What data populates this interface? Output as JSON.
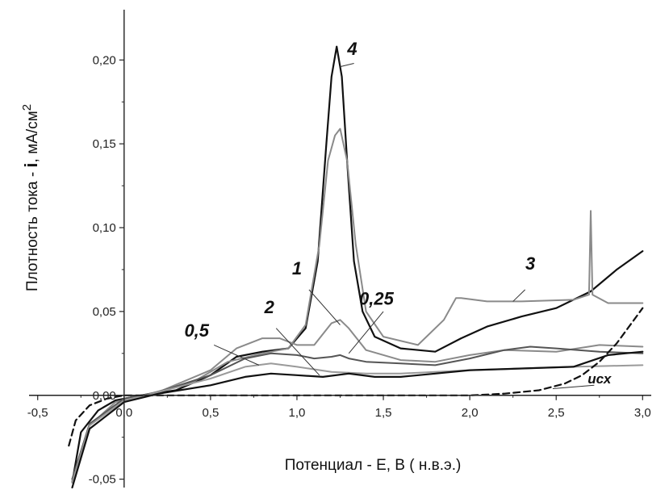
{
  "chart_data": {
    "type": "line",
    "xlabel": "Потенциал - E, B  ( н.в.э.)",
    "ylabel_prefix": "Плотность тока - ",
    "ylabel_bold": "i",
    "ylabel_suffix": ", мА/см",
    "ylabel_sup": "2",
    "xlim": [
      -0.55,
      3.05
    ],
    "ylim": [
      -0.055,
      0.23
    ],
    "x_ticks": [
      {
        "value": -0.5,
        "label": "-0,5"
      },
      {
        "value": 0.0,
        "label": "0,0"
      },
      {
        "value": 0.5,
        "label": "0,5"
      },
      {
        "value": 1.0,
        "label": "1,0"
      },
      {
        "value": 1.5,
        "label": "1,5"
      },
      {
        "value": 2.0,
        "label": "2,0"
      },
      {
        "value": 2.5,
        "label": "2,5"
      },
      {
        "value": 3.0,
        "label": "3,0"
      }
    ],
    "y_ticks": [
      {
        "value": -0.05,
        "label": "-0,05"
      },
      {
        "value": 0.0,
        "label": "0,00"
      },
      {
        "value": 0.05,
        "label": "0,05"
      },
      {
        "value": 0.1,
        "label": "0,10"
      },
      {
        "value": 0.15,
        "label": "0,15"
      },
      {
        "value": 0.2,
        "label": "0,20"
      }
    ],
    "series": [
      {
        "name": "4",
        "color": "#111111",
        "dash": "solid",
        "x": [
          -0.3,
          -0.25,
          -0.15,
          -0.05,
          0.1,
          0.3,
          0.5,
          0.65,
          0.8,
          0.95,
          1.05,
          1.12,
          1.17,
          1.2,
          1.23,
          1.26,
          1.29,
          1.33,
          1.38,
          1.45,
          1.6,
          1.8,
          1.95,
          2.1,
          2.3,
          2.5,
          2.7,
          2.85,
          3.0
        ],
        "y": [
          -0.052,
          -0.022,
          -0.009,
          -0.003,
          0.0,
          0.003,
          0.012,
          0.023,
          0.026,
          0.028,
          0.04,
          0.08,
          0.15,
          0.19,
          0.208,
          0.19,
          0.14,
          0.08,
          0.05,
          0.035,
          0.028,
          0.026,
          0.034,
          0.041,
          0.047,
          0.052,
          0.062,
          0.075,
          0.086
        ]
      },
      {
        "name": "3",
        "color": "#8a8a8a",
        "dash": "solid",
        "x": [
          -0.3,
          -0.2,
          -0.05,
          0.15,
          0.4,
          0.6,
          0.8,
          0.95,
          1.05,
          1.13,
          1.18,
          1.22,
          1.25,
          1.29,
          1.34,
          1.4,
          1.5,
          1.7,
          1.85,
          1.92,
          1.95,
          2.1,
          2.3,
          2.6,
          2.69,
          2.7,
          2.71,
          2.8,
          3.0
        ],
        "y": [
          -0.05,
          -0.018,
          -0.004,
          0.001,
          0.008,
          0.02,
          0.025,
          0.028,
          0.042,
          0.09,
          0.14,
          0.155,
          0.159,
          0.14,
          0.09,
          0.05,
          0.035,
          0.03,
          0.045,
          0.058,
          0.058,
          0.056,
          0.056,
          0.057,
          0.06,
          0.11,
          0.06,
          0.055,
          0.055
        ]
      },
      {
        "name": "1",
        "color": "#8a8a8a",
        "dash": "solid",
        "x": [
          -0.3,
          -0.2,
          0.0,
          0.2,
          0.5,
          0.65,
          0.8,
          0.9,
          1.0,
          1.1,
          1.2,
          1.25,
          1.3,
          1.4,
          1.6,
          1.8,
          2.0,
          2.2,
          2.5,
          2.75,
          3.0
        ],
        "y": [
          -0.05,
          -0.017,
          -0.002,
          0.002,
          0.015,
          0.028,
          0.034,
          0.034,
          0.03,
          0.03,
          0.043,
          0.045,
          0.04,
          0.027,
          0.021,
          0.02,
          0.024,
          0.027,
          0.026,
          0.03,
          0.029
        ]
      },
      {
        "name": "0,25",
        "color": "#555555",
        "dash": "solid",
        "x": [
          -0.3,
          -0.2,
          0.0,
          0.2,
          0.5,
          0.7,
          0.85,
          1.0,
          1.1,
          1.2,
          1.25,
          1.3,
          1.4,
          1.6,
          1.8,
          2.0,
          2.2,
          2.35,
          2.5,
          2.75,
          3.0
        ],
        "y": [
          -0.05,
          -0.017,
          -0.002,
          0.002,
          0.012,
          0.022,
          0.025,
          0.024,
          0.022,
          0.023,
          0.024,
          0.022,
          0.02,
          0.019,
          0.018,
          0.022,
          0.027,
          0.029,
          0.028,
          0.026,
          0.025
        ]
      },
      {
        "name": "0,5",
        "color": "#9a9a9a",
        "dash": "solid",
        "x": [
          -0.3,
          -0.2,
          0.0,
          0.2,
          0.5,
          0.7,
          0.85,
          1.0,
          1.2,
          1.4,
          1.6,
          1.8,
          2.0,
          2.3,
          2.6,
          3.0
        ],
        "y": [
          -0.052,
          -0.018,
          -0.003,
          0.002,
          0.01,
          0.017,
          0.019,
          0.017,
          0.014,
          0.013,
          0.013,
          0.014,
          0.015,
          0.016,
          0.017,
          0.018
        ]
      },
      {
        "name": "2",
        "color": "#111111",
        "dash": "solid",
        "x": [
          -0.3,
          -0.2,
          0.0,
          0.2,
          0.5,
          0.7,
          0.85,
          1.0,
          1.15,
          1.3,
          1.45,
          1.6,
          1.8,
          2.0,
          2.3,
          2.6,
          2.8,
          3.0
        ],
        "y": [
          -0.055,
          -0.02,
          -0.004,
          0.001,
          0.006,
          0.011,
          0.013,
          0.012,
          0.011,
          0.013,
          0.011,
          0.011,
          0.013,
          0.015,
          0.016,
          0.017,
          0.024,
          0.026
        ]
      },
      {
        "name": "исх",
        "color": "#111111",
        "dash": "dashed",
        "x": [
          -0.32,
          -0.28,
          -0.2,
          -0.1,
          0.0,
          0.5,
          1.0,
          1.5,
          2.0,
          2.2,
          2.4,
          2.55,
          2.65,
          2.75,
          2.85,
          2.95,
          3.0
        ],
        "y": [
          -0.03,
          -0.015,
          -0.006,
          -0.002,
          0.0,
          0.0,
          0.0,
          0.0,
          0.0,
          0.001,
          0.003,
          0.007,
          0.012,
          0.02,
          0.031,
          0.045,
          0.052
        ]
      }
    ],
    "labels": [
      {
        "text": "4",
        "x": 1.32,
        "y": 0.203,
        "size": "large"
      },
      {
        "text": "3",
        "x": 2.35,
        "y": 0.075,
        "size": "large"
      },
      {
        "text": "1",
        "x": 1.0,
        "y": 0.072,
        "size": "large"
      },
      {
        "text": "0,25",
        "x": 1.46,
        "y": 0.054,
        "size": "large"
      },
      {
        "text": "2",
        "x": 0.84,
        "y": 0.049,
        "size": "large"
      },
      {
        "text": "0,5",
        "x": 0.42,
        "y": 0.035,
        "size": "large"
      },
      {
        "text": "исх",
        "x": 2.75,
        "y": 0.007,
        "size": "small"
      }
    ],
    "leaders": [
      {
        "label": "4",
        "from": [
          1.33,
          0.198
        ],
        "to": [
          1.25,
          0.196
        ]
      },
      {
        "label": "3",
        "from": [
          2.32,
          0.063
        ],
        "to": [
          2.25,
          0.056
        ]
      },
      {
        "label": "1",
        "from": [
          1.07,
          0.063
        ],
        "to": [
          1.25,
          0.042
        ]
      },
      {
        "label": "0,25",
        "from": [
          1.5,
          0.05
        ],
        "to": [
          1.3,
          0.025
        ]
      },
      {
        "label": "2",
        "from": [
          0.88,
          0.04
        ],
        "to": [
          1.13,
          0.012
        ]
      },
      {
        "label": "0,5",
        "from": [
          0.52,
          0.03
        ],
        "to": [
          0.78,
          0.018
        ]
      },
      {
        "label": "исх",
        "from": [
          2.72,
          0.006
        ],
        "to": [
          2.48,
          0.004
        ]
      }
    ]
  }
}
